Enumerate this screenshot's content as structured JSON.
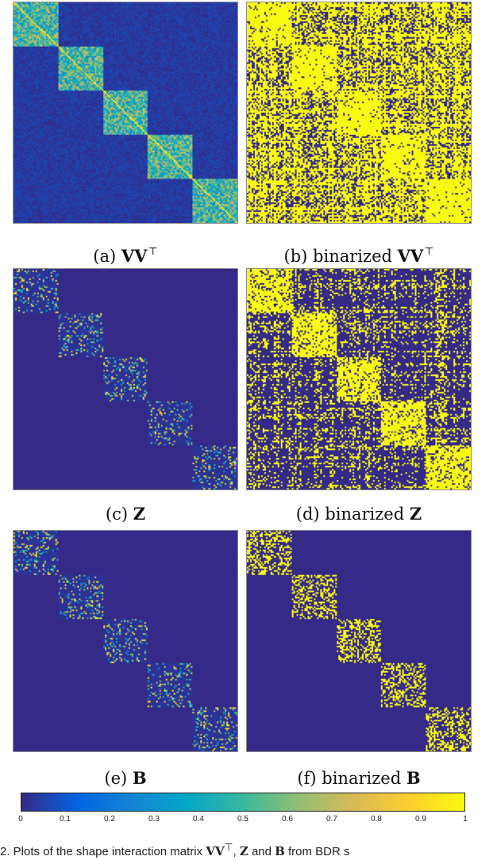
{
  "panels": [
    {
      "id": "a",
      "mode": "continuous",
      "density": 0.35,
      "off_level": 0.08,
      "rows_vertical": false
    },
    {
      "id": "b",
      "mode": "binary",
      "density": 0.92,
      "off_level": 0.5,
      "rows_vertical": true
    },
    {
      "id": "c",
      "mode": "sparse",
      "density": 0.18,
      "off_level": 0.0,
      "rows_vertical": false
    },
    {
      "id": "d",
      "mode": "binary",
      "density": 0.8,
      "off_level": 0.06,
      "rows_vertical": true
    },
    {
      "id": "e",
      "mode": "sparse",
      "density": 0.2,
      "off_level": 0.0,
      "rows_vertical": false
    },
    {
      "id": "f",
      "mode": "binary",
      "density": 0.4,
      "off_level": 0.0,
      "rows_vertical": false
    }
  ],
  "captions": {
    "a": {
      "prefix": "(a) ",
      "math": "VV",
      "sup": "⊤"
    },
    "b": {
      "prefix": "(b) binarized ",
      "math": "VV",
      "sup": "⊤"
    },
    "c": {
      "prefix": "(c) ",
      "math": "Z",
      "sup": ""
    },
    "d": {
      "prefix": "(d) binarized ",
      "math": "Z",
      "sup": ""
    },
    "e": {
      "prefix": "(e) ",
      "math": "B",
      "sup": ""
    },
    "f": {
      "prefix": "(f) binarized ",
      "math": "B",
      "sup": ""
    }
  },
  "colorbar": {
    "colormap": "parula",
    "ticks": [
      "0",
      "0.1",
      "0.2",
      "0.3",
      "0.4",
      "0.5",
      "0.6",
      "0.7",
      "0.8",
      "0.9",
      "1"
    ],
    "colors": [
      "#352a87",
      "#0363e1",
      "#1485d4",
      "#06a7c6",
      "#38b99e",
      "#92bf73",
      "#d9ba56",
      "#fcce2e",
      "#f9fb0e"
    ]
  },
  "bottom_caption": {
    "text1": "2. Plots of the shape interaction matrix ",
    "m1": "VV",
    "sup1": "⊤",
    "text2": ", ",
    "m2": "Z",
    "text3": " and ",
    "m3": "B",
    "text4": " from BDR s"
  },
  "chart_data": {
    "type": "heatmap",
    "panels": [
      "(a) VV⊤",
      "(b) binarized VV⊤",
      "(c) Z",
      "(d) binarized Z",
      "(e) B",
      "(f) binarized B"
    ],
    "num_blocks": 5,
    "block_structure": "block-diagonal",
    "color_range": [
      0,
      1
    ],
    "colorbar_ticks": [
      0,
      0.1,
      0.2,
      0.3,
      0.4,
      0.5,
      0.6,
      0.7,
      0.8,
      0.9,
      1
    ]
  }
}
